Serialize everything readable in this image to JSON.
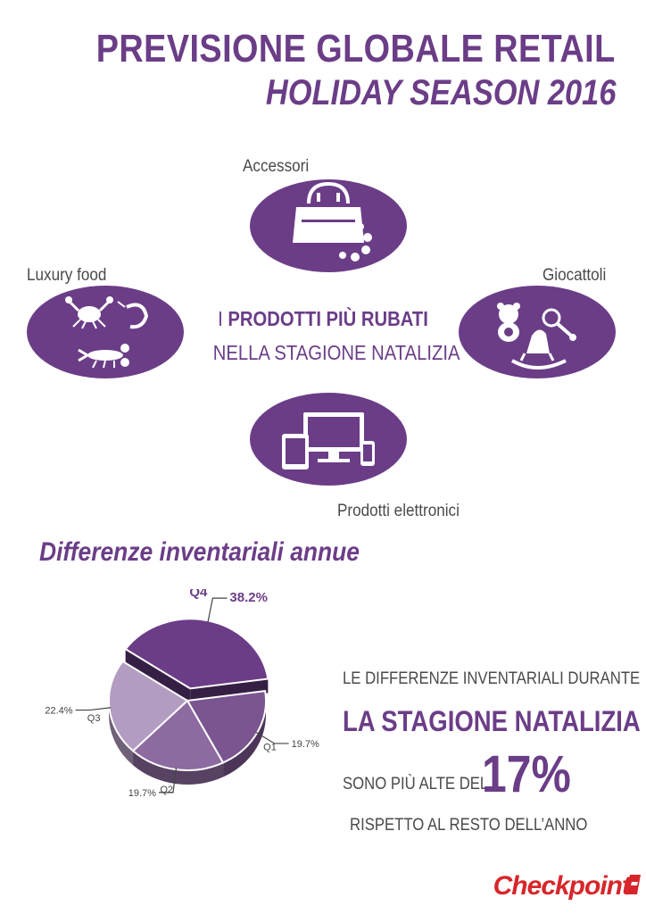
{
  "header": {
    "title": "PREVISIONE GLOBALE RETAIL",
    "subtitle": "HOLIDAY SEASON 2016"
  },
  "categories": {
    "accessori": "Accessori",
    "luxury_food": "Luxury food",
    "giocattoli": "Giocattoli",
    "elettronici": "Prodotti elettronici"
  },
  "center": {
    "line1_prefix": "I ",
    "line1_bold": "PRODOTTI PIÙ RUBATI",
    "line2": "NELLA STAGIONE NATALIZIA"
  },
  "section_title": "Differenze inventariali annue",
  "statement": {
    "line1": "LE DIFFERENZE INVENTARIALI DURANTE",
    "line2": "LA STAGIONE NATALIZIA",
    "line3": "SONO PIÙ ALTE DEL",
    "big_value": "17%",
    "line4": "RISPETTO AL RESTO DELL’ANNO"
  },
  "logo": {
    "text": "Checkpoint"
  },
  "colors": {
    "brand_purple": "#6b3d87",
    "ellipse_purple": "#6b3d87",
    "logo_red": "#d7262a"
  },
  "icons": {
    "accessori": "handbag-icon",
    "luxury_food": "crab-shrimp-lobster-icon",
    "giocattoli": "teddy-rattle-rockinghorse-icon",
    "elettronici": "tablet-monitor-phone-icon"
  },
  "chart_data": {
    "type": "pie",
    "title": "Differenze inventariali annue",
    "categories": [
      "Q1",
      "Q2",
      "Q3",
      "Q4"
    ],
    "values": [
      19.7,
      19.7,
      22.4,
      38.2
    ],
    "labels": [
      "19.7%",
      "19.7%",
      "22.4%",
      "38.2%"
    ],
    "colors": [
      "#7a5590",
      "#8d6ba0",
      "#b39cc2",
      "#6b3d87"
    ],
    "exploded": "Q4"
  }
}
